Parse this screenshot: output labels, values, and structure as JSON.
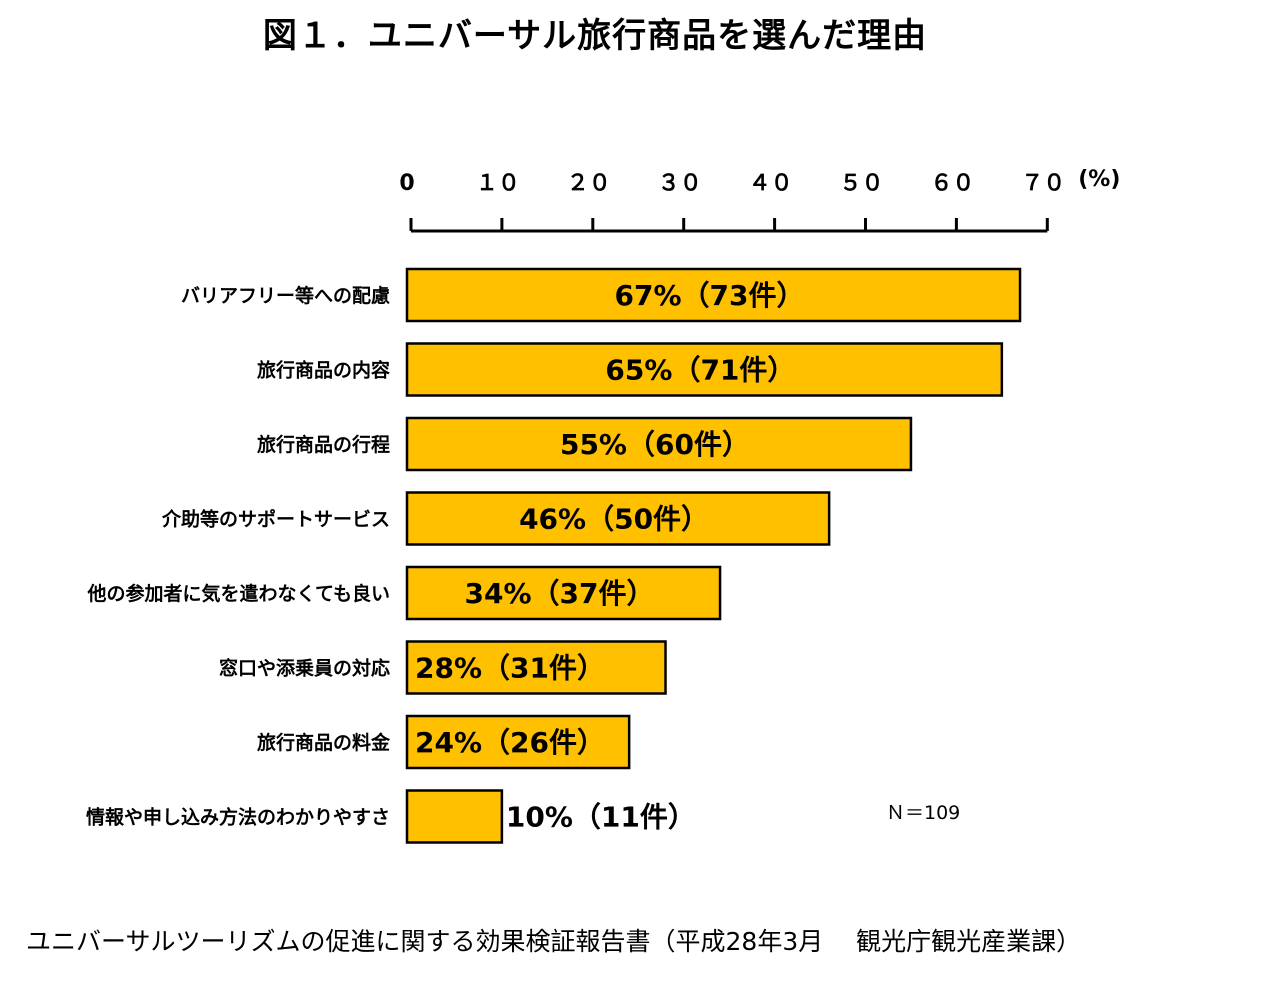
{
  "figure": {
    "title": "図１．ユニバーサル旅行商品を選んだ理由",
    "source": "ユニバーサルツーリズムの促進に関する効果検証報告書（平成28年3月　 観光庁観光産業課）",
    "n_label": "Ｎ＝109"
  },
  "chart_data": {
    "type": "bar",
    "orientation": "horizontal",
    "title": "図１．ユニバーサル旅行商品を選んだ理由",
    "x_axis": {
      "position": "top",
      "ticks": [
        0,
        10,
        20,
        30,
        40,
        50,
        60,
        70
      ],
      "tick_labels": [
        "0",
        "１０",
        "２０",
        "３０",
        "４０",
        "５０",
        "６０",
        "７０"
      ],
      "unit_label": "(%)",
      "range": [
        0,
        70
      ]
    },
    "categories": [
      "バリアフリー等への配慮",
      "旅行商品の内容",
      "旅行商品の行程",
      "介助等のサポートサービス",
      "他の参加者に気を遣わなくても良い",
      "窓口や添乗員の対応",
      "旅行商品の料金",
      "情報や申し込み方法のわかりやすさ"
    ],
    "values": [
      67,
      65,
      55,
      46,
      34,
      28,
      24,
      10
    ],
    "counts": [
      73,
      71,
      60,
      50,
      37,
      31,
      26,
      11
    ],
    "data_labels": [
      "67%（73件）",
      "65%（71件）",
      "55%（60件）",
      "46%（50件）",
      "34%（37件）",
      "28%（31件）",
      "24%（26件）",
      "10%（11件）"
    ],
    "bar_color": "#FFC000",
    "bar_border_color": "#000000",
    "legend": "none",
    "grid": false,
    "n": 109
  }
}
